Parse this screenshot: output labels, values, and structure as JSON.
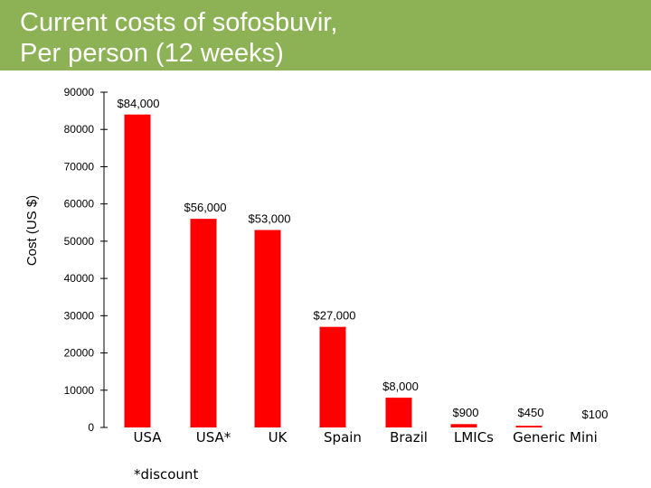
{
  "header": {
    "color": "#8db255"
  },
  "chart_data": {
    "type": "bar",
    "title": "Current costs of sofosbuvir,\nPer person (12 weeks)",
    "xlabel": "",
    "ylabel": "Cost (US $)",
    "ylim": [
      0,
      90000
    ],
    "yticks": [
      0,
      10000,
      20000,
      30000,
      40000,
      50000,
      60000,
      70000,
      80000,
      90000
    ],
    "ytick_labels": [
      "0",
      "10000",
      "20000",
      "30000",
      "40000",
      "50000",
      "60000",
      "70000",
      "80000",
      "90000"
    ],
    "grid": false,
    "bar_color": "#ff0000",
    "categories": [
      "USA",
      "USA*",
      "UK",
      "Spain",
      "Brazil",
      "LMICs",
      "Generic  Mini"
    ],
    "values": [
      84000,
      56000,
      53000,
      27000,
      8000,
      900,
      450
    ],
    "data_labels": [
      "$84,000",
      "$56,000",
      "$53,000",
      "$27,000",
      "$8,000",
      "$900",
      "$450"
    ],
    "extra_label": "$100"
  },
  "footnote": "*discount"
}
